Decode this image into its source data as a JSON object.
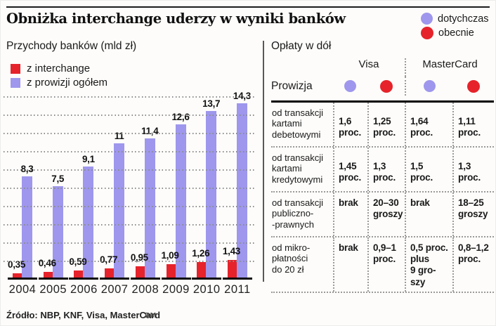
{
  "title": "Obniżka interchange uderzy w wyniki banków",
  "colors": {
    "purple": "#9e97ed",
    "red": "#e6232a"
  },
  "top_legend": [
    {
      "label": "dotychczas",
      "color_key": "purple"
    },
    {
      "label": "obecnie",
      "color_key": "red"
    }
  ],
  "chart": {
    "title": "Przychody banków (mld zł)",
    "legend": [
      {
        "label": "z interchange",
        "color_key": "red"
      },
      {
        "label": "z prowizji ogółem",
        "color_key": "purple"
      }
    ]
  },
  "chart_data": {
    "type": "bar",
    "title": "Przychody banków (mld zł)",
    "categories": [
      "2004",
      "2005",
      "2006",
      "2007",
      "2008",
      "2009",
      "2010",
      "2011"
    ],
    "series": [
      {
        "name": "z interchange",
        "color_key": "red",
        "values": [
          0.35,
          0.46,
          0.59,
          0.77,
          0.95,
          1.09,
          1.26,
          1.43
        ]
      },
      {
        "name": "z prowizji ogółem",
        "color_key": "purple",
        "values": [
          8.3,
          7.5,
          9.1,
          11,
          11.4,
          12.6,
          13.7,
          14.3
        ]
      }
    ],
    "ylim": [
      0,
      15
    ],
    "grid_step": 1.5,
    "grid": "dotted horizontal",
    "xlabel": "",
    "ylabel": "mld zł"
  },
  "table": {
    "title": "Opłaty w dół",
    "groups": [
      "Visa",
      "MasterCard"
    ],
    "row_header": "Prowizja",
    "col_circles": [
      "purple",
      "red",
      "purple",
      "red"
    ],
    "rows": [
      {
        "label": "od transakcji\nkartami\ndebetowymi",
        "values": [
          "1,6\nproc.",
          "1,25\nproc.",
          "1,64\nproc.",
          "1,11\nproc."
        ]
      },
      {
        "label": "od transakcji\nkartami\nkredytowymi",
        "values": [
          "1,45\nproc.",
          "1,3\nproc.",
          "1,5\nproc.",
          "1,3\nproc."
        ]
      },
      {
        "label": "od transakcji\npubliczno-\n-prawnych",
        "values": [
          "brak",
          "20–30\ngroszy",
          "brak",
          "18–25\ngroszy"
        ]
      },
      {
        "label": "od mikro-\npłatności\ndo 20 zł",
        "values": [
          "brak",
          "0,9–1\nproc.",
          "0,5 proc.\nplus\n9 gro-\nszy",
          "0,8–1,2\nproc."
        ]
      }
    ]
  },
  "footer": {
    "source": "Źródło: NBP, KNF, Visa, MasterCard",
    "credit": "RM"
  }
}
